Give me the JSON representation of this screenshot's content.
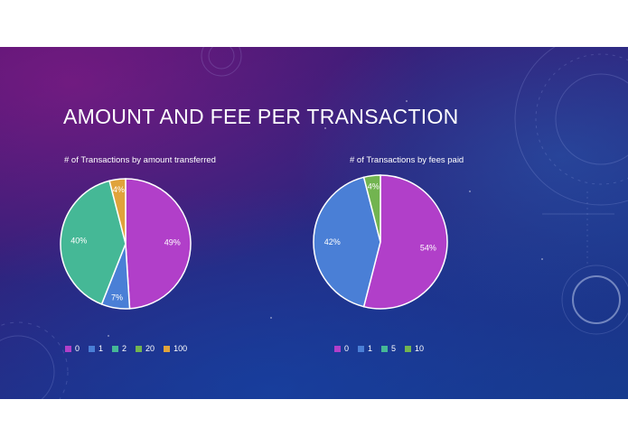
{
  "slide": {
    "title": "AMOUNT AND FEE PER TRANSACTION"
  },
  "chart_data": [
    {
      "type": "pie",
      "title": "# of Transactions by amount transferred",
      "categories": [
        "0",
        "1",
        "2",
        "20",
        "100"
      ],
      "values": [
        49,
        7,
        40,
        0,
        4
      ],
      "labels": [
        "49%",
        "7%",
        "40%",
        "",
        "4%"
      ],
      "colors": [
        "#b13fc9",
        "#4a7fd6",
        "#45b896",
        "#72b450",
        "#e0a33b"
      ],
      "legend": "bottom"
    },
    {
      "type": "pie",
      "title": "# of Transactions by fees paid",
      "categories": [
        "0",
        "1",
        "5",
        "10"
      ],
      "values": [
        54,
        42,
        0,
        4
      ],
      "labels": [
        "54%",
        "42%",
        "",
        "4%"
      ],
      "colors": [
        "#b13fc9",
        "#4a7fd6",
        "#45b896",
        "#72b450"
      ],
      "legend": "bottom"
    }
  ]
}
